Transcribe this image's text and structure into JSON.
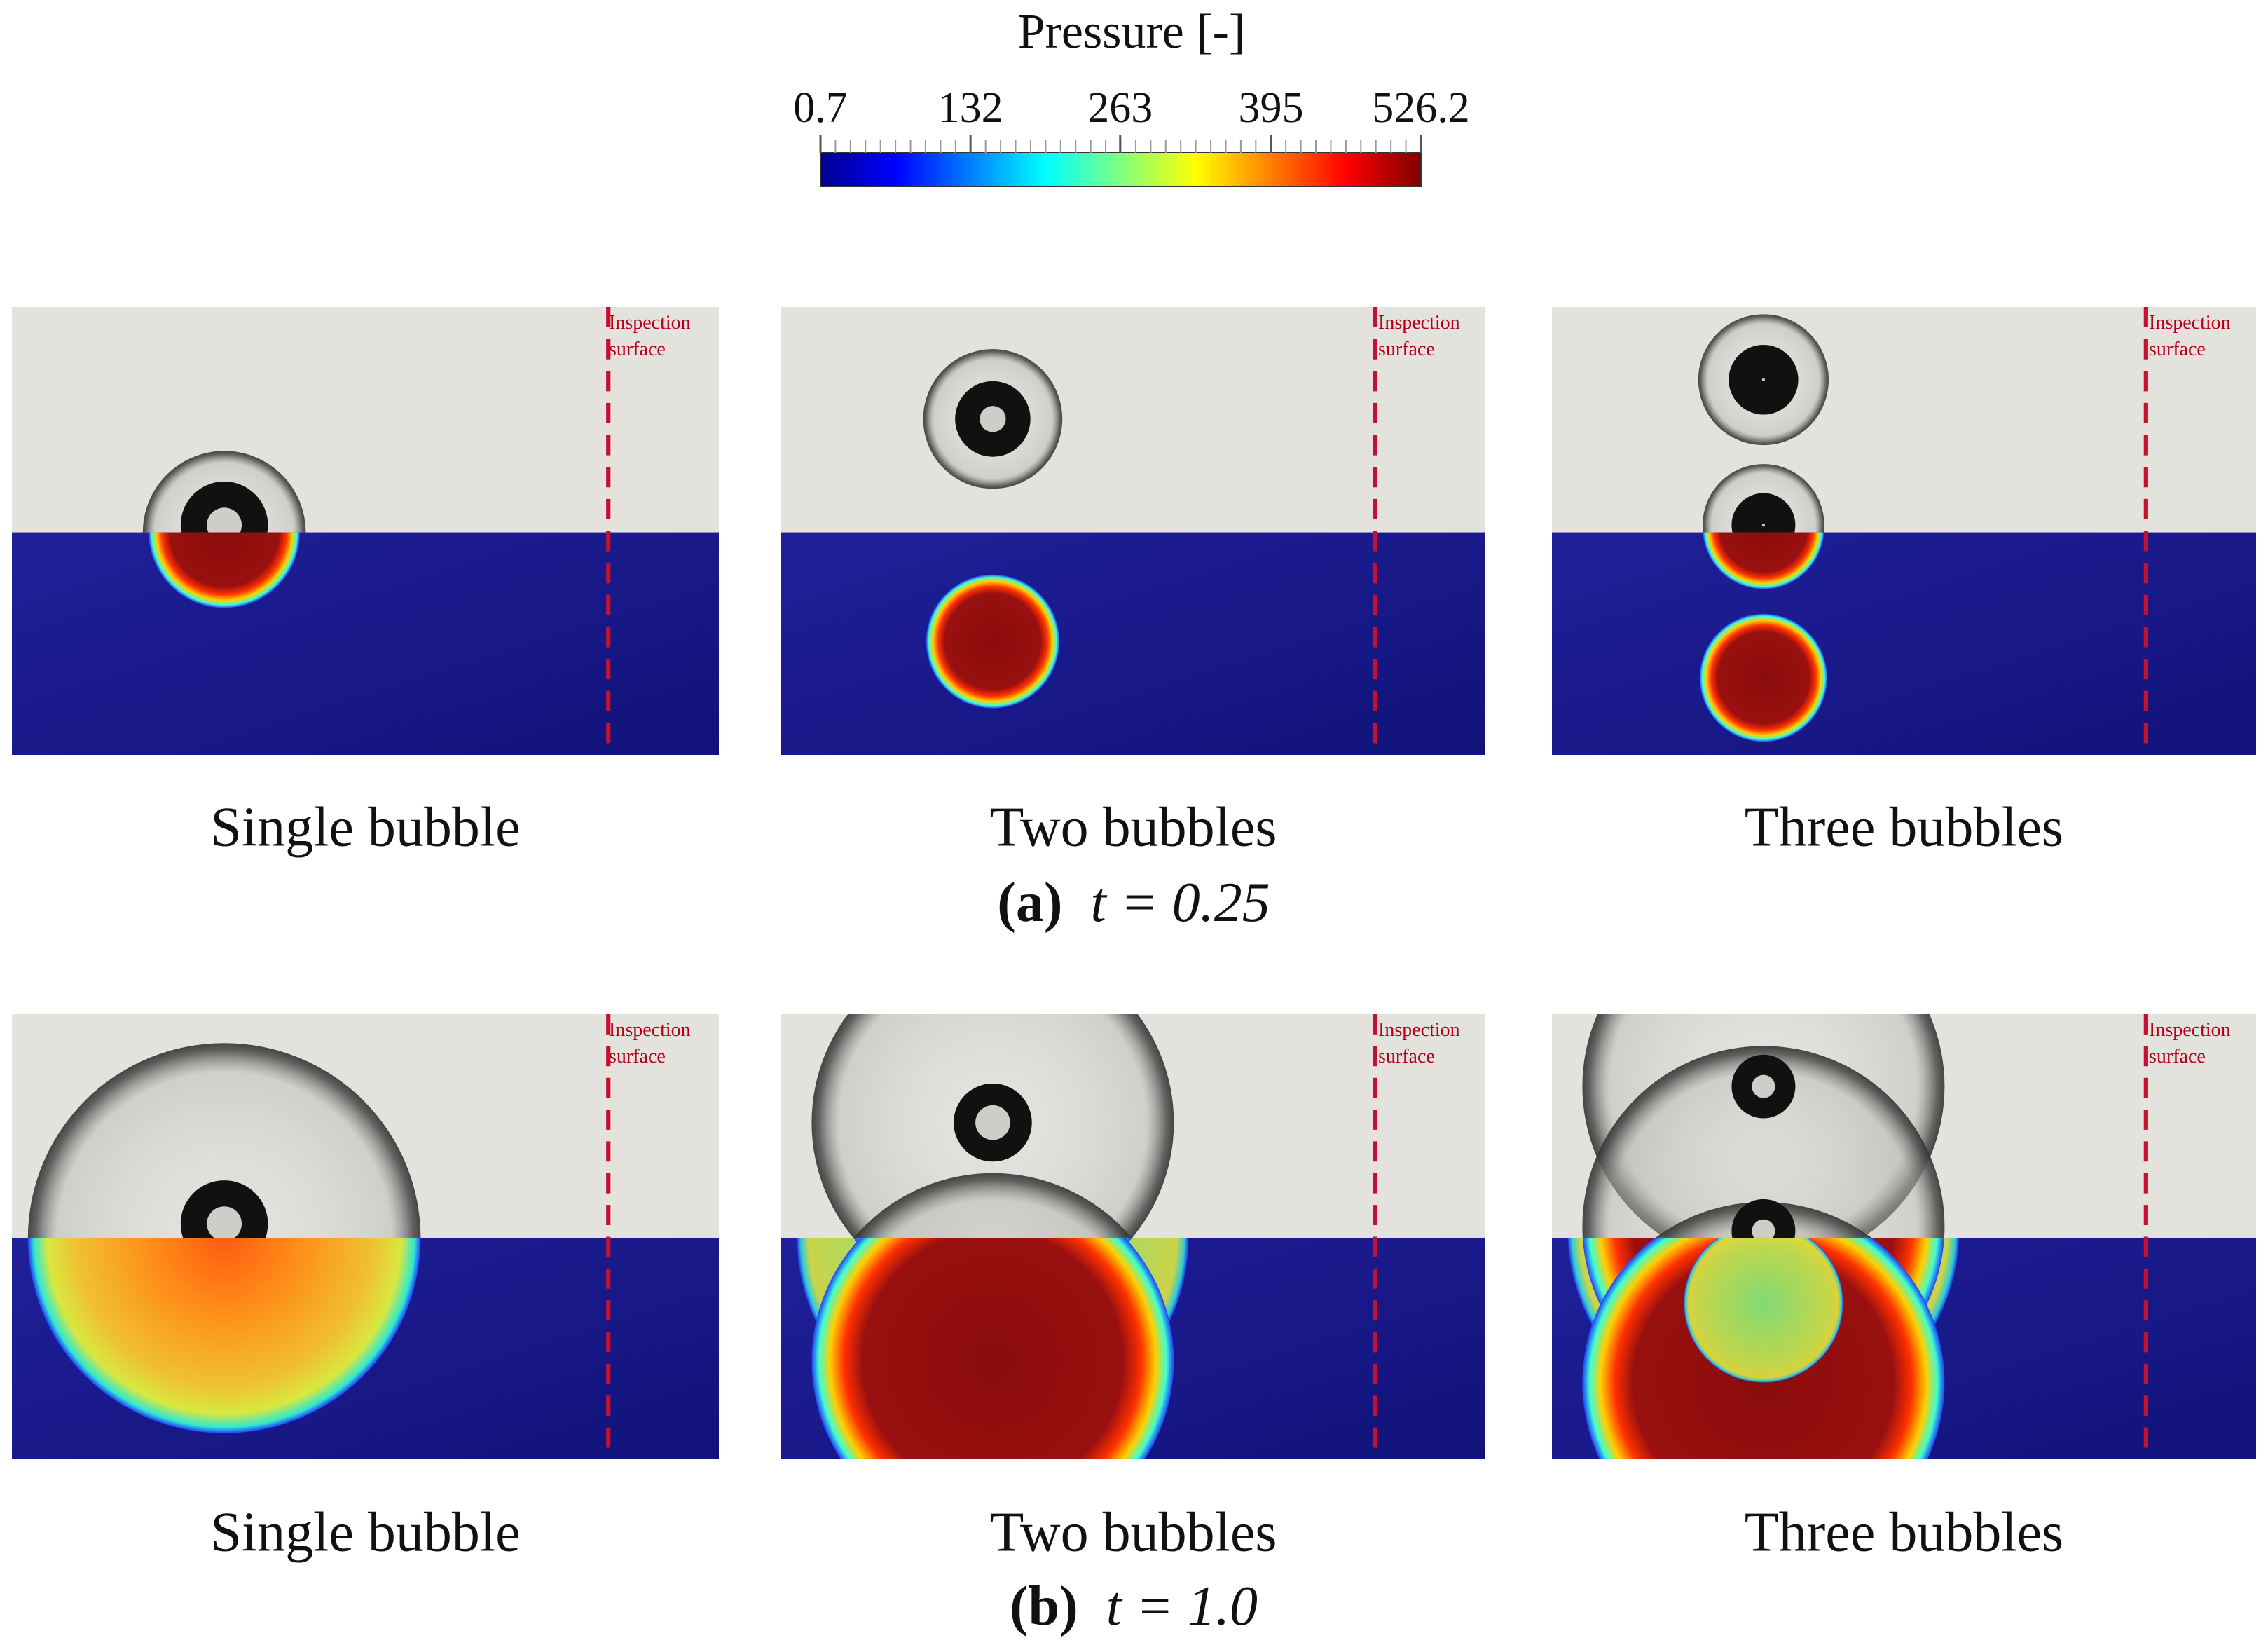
{
  "colorbar": {
    "title": "Pressure [-]",
    "range": [
      0.7,
      526.2
    ],
    "ticks": [
      0.7,
      132,
      263,
      395,
      526.2
    ]
  },
  "rows": [
    {
      "panels": [
        {
          "label": "Single bubble",
          "annotation": [
            "Inspection",
            "surface"
          ]
        },
        {
          "label": "Two bubbles",
          "annotation": [
            "Inspection",
            "surface"
          ]
        },
        {
          "label": "Three bubbles",
          "annotation": [
            "Inspection",
            "surface"
          ]
        }
      ],
      "caption": {
        "label": "(a)",
        "time": "t = 0.25"
      }
    },
    {
      "panels": [
        {
          "label": "Single bubble",
          "annotation": [
            "Inspection",
            "surface"
          ]
        },
        {
          "label": "Two bubbles",
          "annotation": [
            "Inspection",
            "surface"
          ]
        },
        {
          "label": "Three bubbles",
          "annotation": [
            "Inspection",
            "surface"
          ]
        }
      ],
      "caption": {
        "label": "(b)",
        "time": "t = 1.0"
      }
    }
  ]
}
